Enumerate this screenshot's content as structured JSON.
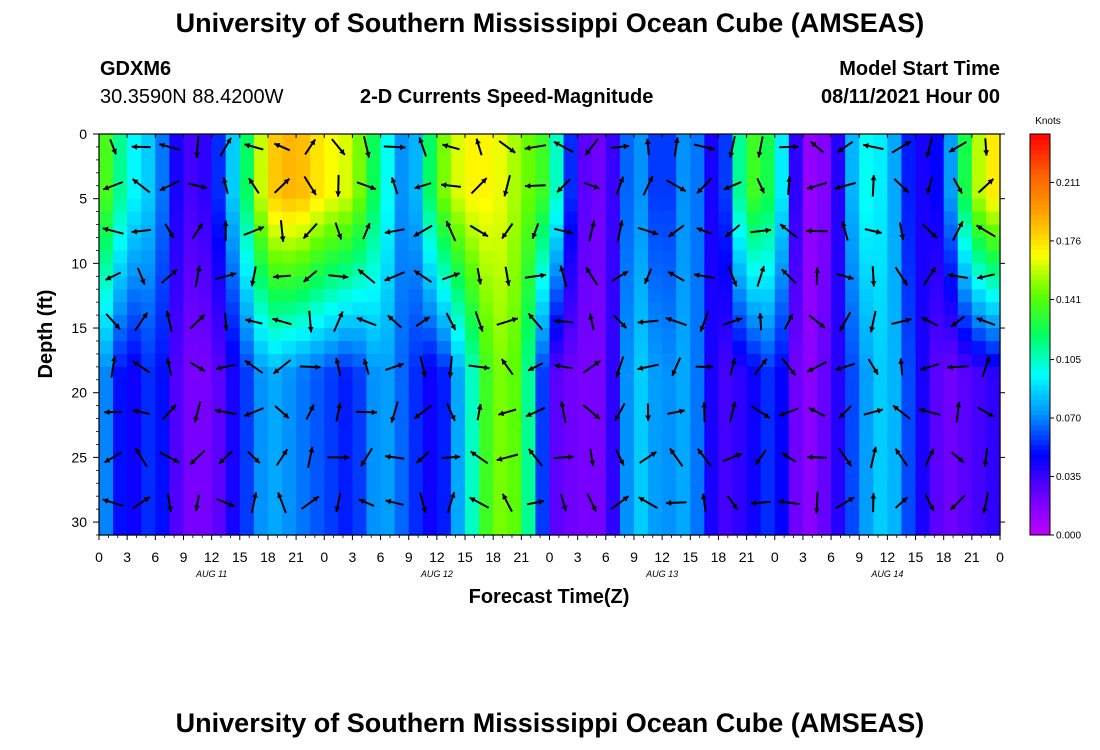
{
  "header": {
    "title_top": "University of Southern Mississippi Ocean Cube (AMSEAS)",
    "title_bottom": "University of Southern Mississippi Ocean Cube (AMSEAS)",
    "station": "GDXM6",
    "coords": "30.3590N  88.4200W",
    "plot_title": "2-D Currents Speed-Magnitude",
    "start_label": "Model Start Time",
    "start_value": "08/11/2021 Hour 00"
  },
  "chart_data": {
    "type": "heatmap",
    "title": "2-D Currents Speed-Magnitude",
    "xlabel": "Forecast Time(Z)",
    "ylabel": "Depth (ft)",
    "ylim": [
      0,
      31
    ],
    "y_reversed": true,
    "x_ticks": [
      "0",
      "3",
      "6",
      "9",
      "12",
      "15",
      "18",
      "21",
      "0",
      "3",
      "6",
      "9",
      "12",
      "15",
      "18",
      "21",
      "0",
      "3",
      "6",
      "9",
      "12",
      "15",
      "18",
      "21",
      "0",
      "3",
      "6",
      "9",
      "12",
      "15",
      "18",
      "21",
      "0"
    ],
    "day_labels": [
      "AUG 11",
      "AUG 12",
      "AUG 13",
      "AUG 14"
    ],
    "y_ticks": [
      0,
      5,
      10,
      15,
      20,
      25,
      30
    ],
    "colorbar": {
      "label": "Knots",
      "ticks": [
        "0.000",
        "0.035",
        "0.070",
        "0.105",
        "0.141",
        "0.176",
        "0.211"
      ],
      "colors": [
        "#c000ff",
        "#6a00ff",
        "#0000ff",
        "#0090ff",
        "#00ffff",
        "#00ff60",
        "#60ff00",
        "#ffff00",
        "#ffa500",
        "#ff6000",
        "#ff0000"
      ],
      "range": [
        0,
        0.24
      ]
    },
    "speed_profile": {
      "hours": [
        0,
        3,
        6,
        9,
        12,
        15,
        18,
        21,
        24,
        27,
        30,
        33,
        36,
        39,
        42,
        45,
        48,
        51,
        54,
        57,
        60,
        63,
        66,
        69,
        72,
        75,
        78,
        81,
        84,
        87,
        90,
        93,
        96
      ],
      "surface": [
        0.15,
        0.1,
        0.08,
        0.03,
        0.04,
        0.1,
        0.18,
        0.19,
        0.17,
        0.16,
        0.11,
        0.06,
        0.14,
        0.17,
        0.17,
        0.15,
        0.13,
        0.03,
        0.02,
        0.08,
        0.05,
        0.08,
        0.03,
        0.14,
        0.12,
        0.01,
        0.02,
        0.1,
        0.09,
        0.04,
        0.05,
        0.15,
        0.18
      ],
      "bottom": [
        0.08,
        0.04,
        0.06,
        0.02,
        0.02,
        0.05,
        0.08,
        0.07,
        0.06,
        0.05,
        0.08,
        0.06,
        0.04,
        0.09,
        0.15,
        0.14,
        0.03,
        0.02,
        0.02,
        0.09,
        0.07,
        0.08,
        0.03,
        0.04,
        0.06,
        0.01,
        0.03,
        0.07,
        0.09,
        0.05,
        0.02,
        0.03,
        0.04
      ]
    }
  }
}
